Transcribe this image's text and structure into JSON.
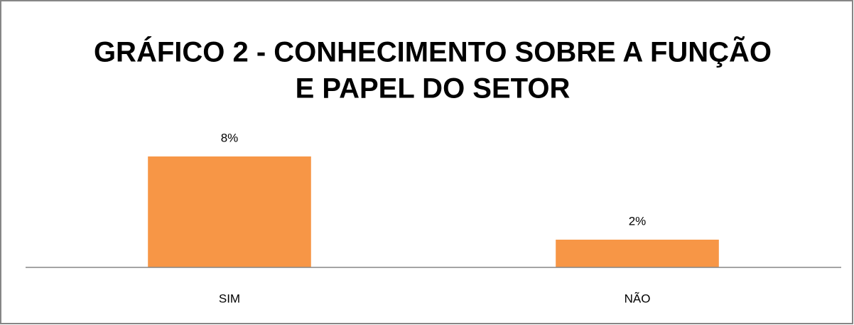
{
  "chart_data": {
    "type": "bar",
    "title": [
      "GRÁFICO 2 - CONHECIMENTO SOBRE A FUNÇÃO",
      "E PAPEL DO SETOR"
    ],
    "categories": [
      "SIM",
      "NÃO"
    ],
    "values": [
      8,
      2
    ],
    "value_labels": [
      "8%",
      "2%"
    ],
    "color": "#f79646"
  }
}
